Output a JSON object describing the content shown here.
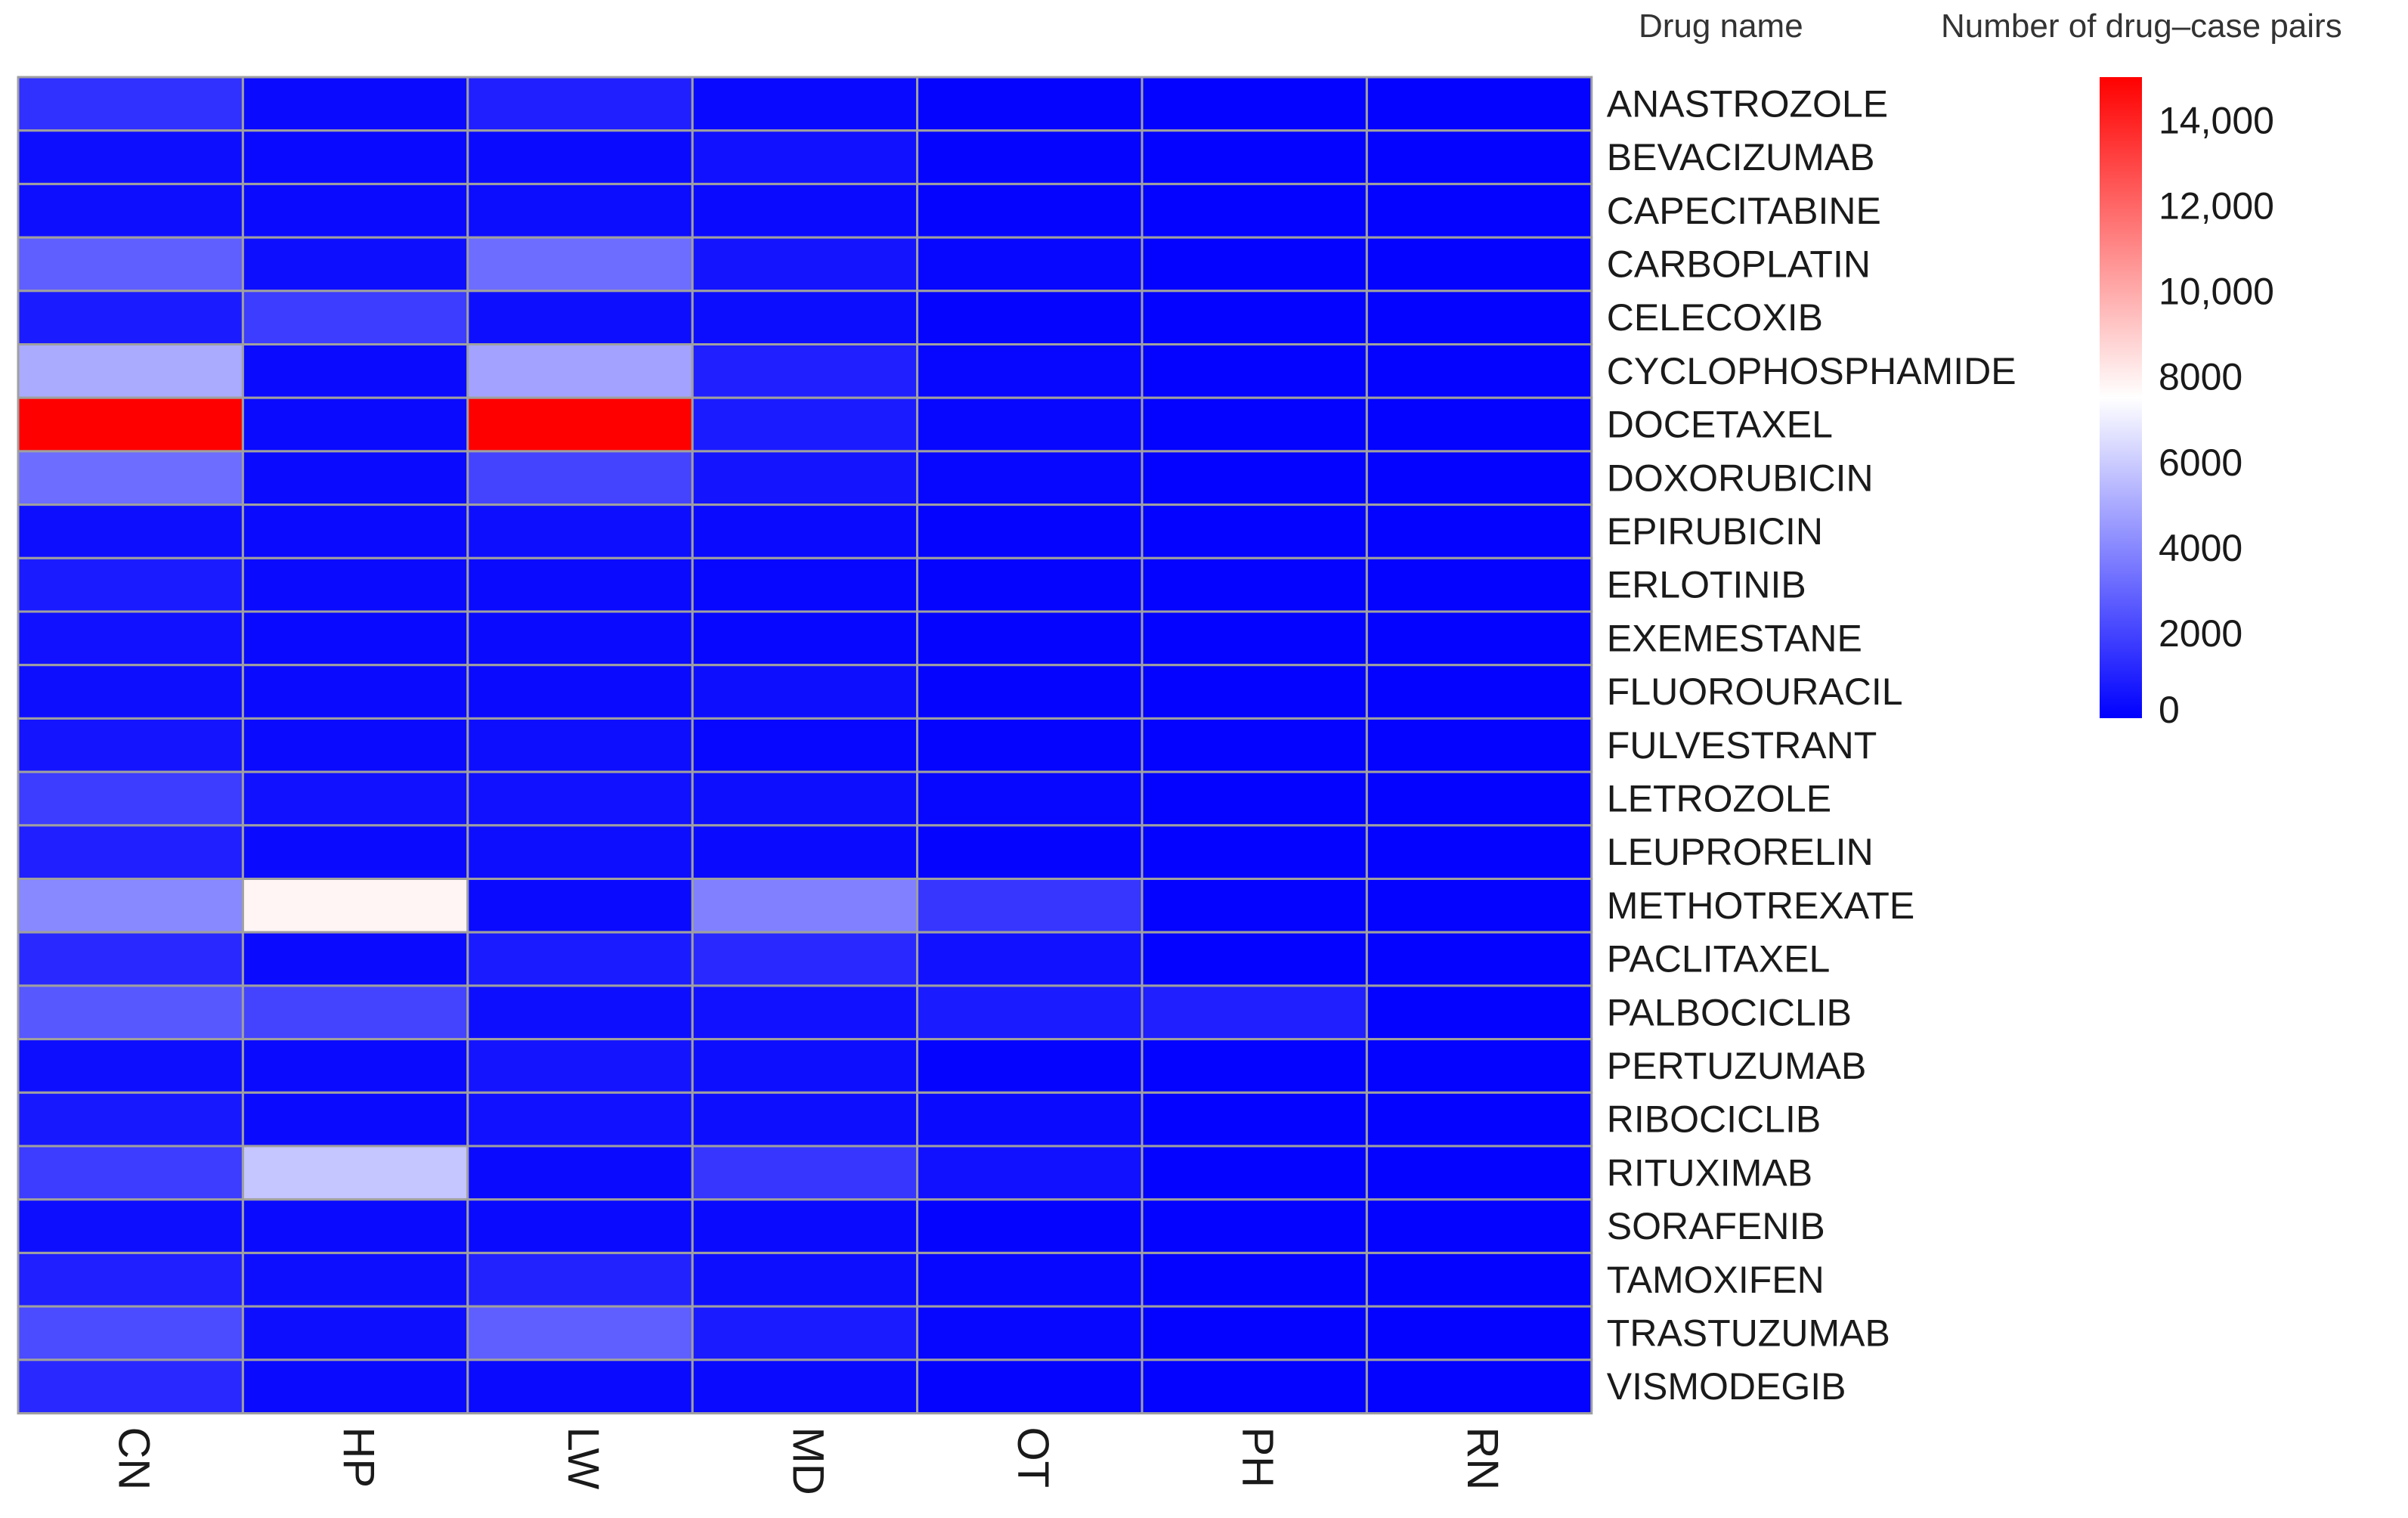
{
  "chart_data": {
    "type": "heatmap",
    "row_title": "Drug name",
    "legend_title": "Number of drug–case pairs",
    "columns": [
      "CN",
      "HP",
      "LW",
      "MD",
      "OT",
      "PH",
      "RN"
    ],
    "rows": [
      {
        "label": "ANASTROZOLE",
        "values": [
          1400,
          300,
          900,
          250,
          150,
          100,
          100
        ]
      },
      {
        "label": "BEVACIZUMAB",
        "values": [
          400,
          250,
          300,
          500,
          150,
          100,
          100
        ]
      },
      {
        "label": "CAPECITABINE",
        "values": [
          400,
          300,
          350,
          300,
          150,
          100,
          100
        ]
      },
      {
        "label": "CARBOPLATIN",
        "values": [
          2800,
          400,
          3200,
          600,
          200,
          100,
          100
        ]
      },
      {
        "label": "CELECOXIB",
        "values": [
          800,
          1800,
          400,
          350,
          150,
          100,
          100
        ]
      },
      {
        "label": "CYCLOPHOSPHAMIDE",
        "values": [
          5000,
          300,
          4800,
          900,
          200,
          100,
          100
        ]
      },
      {
        "label": "DOCETAXEL",
        "values": [
          15000,
          300,
          15000,
          800,
          200,
          100,
          100
        ]
      },
      {
        "label": "DOXORUBICIN",
        "values": [
          3200,
          300,
          2000,
          600,
          200,
          100,
          100
        ]
      },
      {
        "label": "EPIRUBICIN",
        "values": [
          400,
          300,
          400,
          300,
          150,
          100,
          100
        ]
      },
      {
        "label": "ERLOTINIB",
        "values": [
          800,
          300,
          300,
          200,
          150,
          100,
          100
        ]
      },
      {
        "label": "EXEMESTANE",
        "values": [
          500,
          250,
          300,
          200,
          150,
          100,
          100
        ]
      },
      {
        "label": "FLUOROURACIL",
        "values": [
          400,
          300,
          300,
          400,
          150,
          100,
          100
        ]
      },
      {
        "label": "FULVESTRANT",
        "values": [
          600,
          300,
          400,
          200,
          150,
          100,
          100
        ]
      },
      {
        "label": "LETROZOLE",
        "values": [
          1800,
          500,
          500,
          400,
          200,
          100,
          100
        ]
      },
      {
        "label": "LEUPRORELIN",
        "values": [
          900,
          300,
          400,
          300,
          150,
          100,
          100
        ]
      },
      {
        "label": "METHOTREXATE",
        "values": [
          4000,
          7800,
          300,
          3800,
          1600,
          100,
          100
        ]
      },
      {
        "label": "PACLITAXEL",
        "values": [
          1200,
          300,
          800,
          1200,
          500,
          100,
          100
        ]
      },
      {
        "label": "PALBOCICLIB",
        "values": [
          2600,
          2000,
          400,
          500,
          800,
          900,
          100
        ]
      },
      {
        "label": "PERTUZUMAB",
        "values": [
          400,
          300,
          600,
          400,
          150,
          100,
          100
        ]
      },
      {
        "label": "RIBOCICLIB",
        "values": [
          700,
          300,
          500,
          400,
          300,
          100,
          100
        ]
      },
      {
        "label": "RITUXIMAB",
        "values": [
          1800,
          5800,
          300,
          1600,
          500,
          100,
          100
        ]
      },
      {
        "label": "SORAFENIB",
        "values": [
          400,
          300,
          300,
          300,
          150,
          100,
          100
        ]
      },
      {
        "label": "TAMOXIFEN",
        "values": [
          900,
          400,
          1000,
          400,
          200,
          100,
          100
        ]
      },
      {
        "label": "TRASTUZUMAB",
        "values": [
          2200,
          400,
          2800,
          800,
          200,
          100,
          100
        ]
      },
      {
        "label": "VISMODEGIB",
        "values": [
          1200,
          300,
          300,
          300,
          150,
          100,
          100
        ]
      }
    ],
    "color_scale": {
      "min": 0,
      "mid": 7500,
      "max": 15000,
      "low_color": "#0000ff",
      "mid_color": "#ffffff",
      "high_color": "#ff0000"
    },
    "legend_ticks": [
      {
        "value": 0,
        "label": "0"
      },
      {
        "value": 2000,
        "label": "2000"
      },
      {
        "value": 4000,
        "label": "4000"
      },
      {
        "value": 6000,
        "label": "6000"
      },
      {
        "value": 8000,
        "label": "8000"
      },
      {
        "value": 10000,
        "label": "10,000"
      },
      {
        "value": 12000,
        "label": "12,000"
      },
      {
        "value": 14000,
        "label": "14,000"
      }
    ],
    "grid_color": "#a0a0a0",
    "column_label_orientation": "rotated-90",
    "legend_position": "right"
  }
}
